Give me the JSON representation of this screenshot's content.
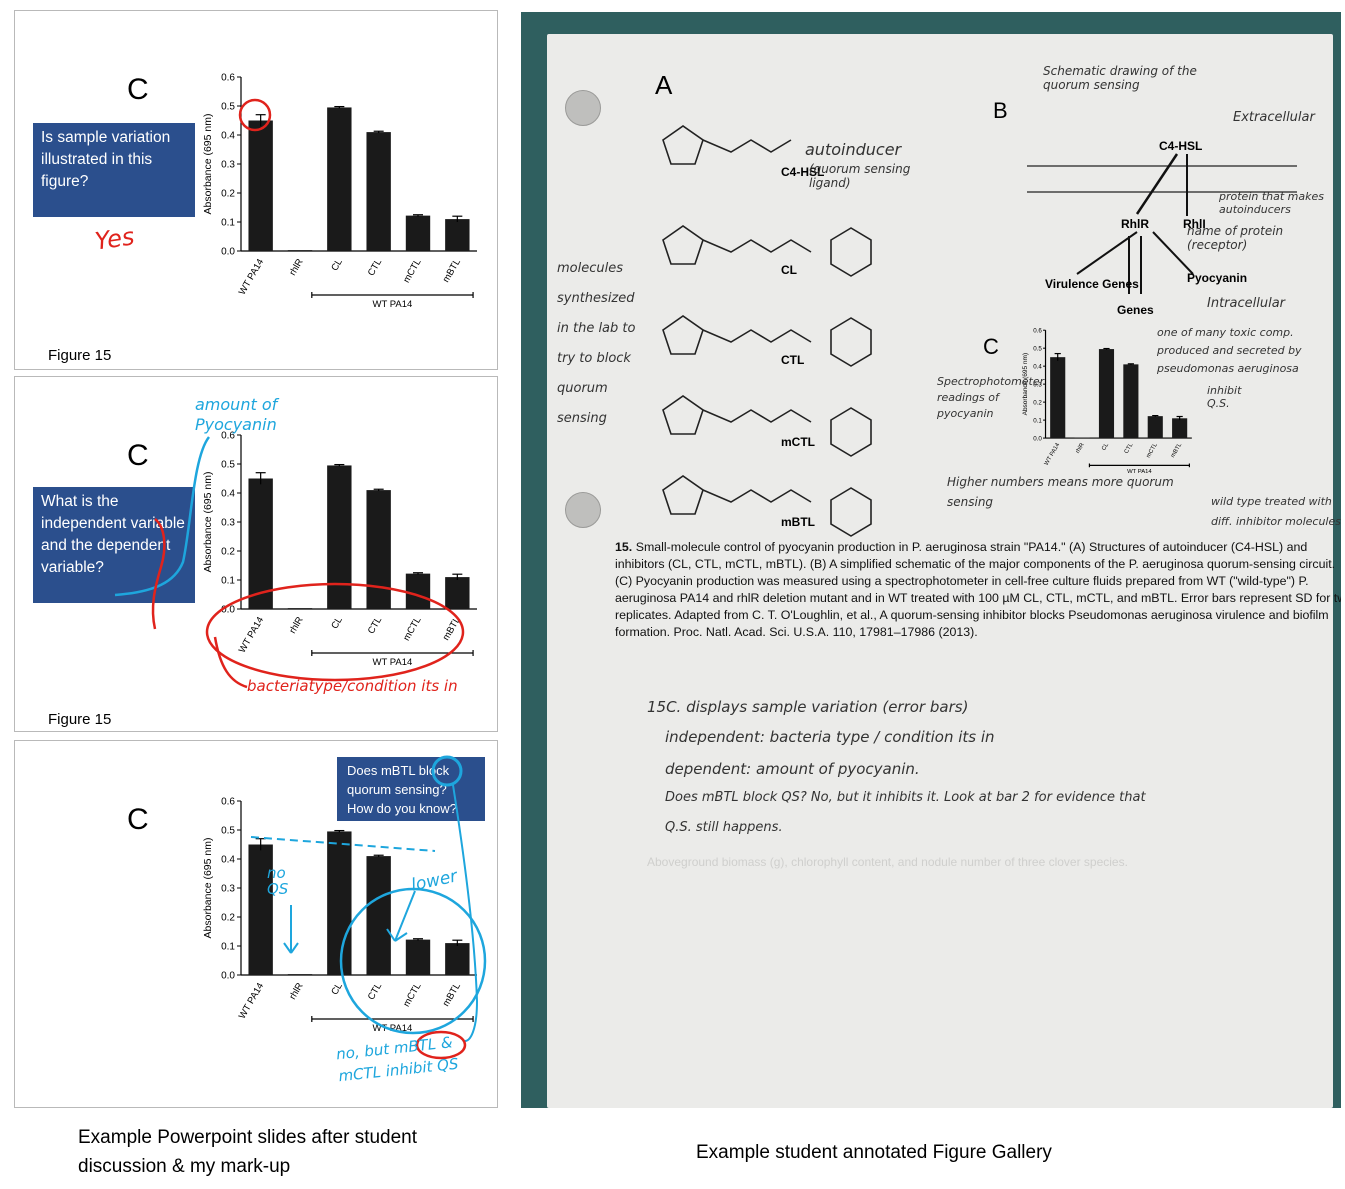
{
  "slides": [
    {
      "letter": "C",
      "question": "Is sample variation illustrated in this figure?",
      "figure_label": "Figure 15",
      "annotations": [
        "Yes"
      ]
    },
    {
      "letter": "C",
      "question": "What is the independent variable and the dependent variable?",
      "figure_label": "Figure 15",
      "annotations": [
        "amount of Pyocyanin",
        "bacteriatype/condition its in"
      ]
    },
    {
      "letter": "C",
      "question": "Does mBTL block quorum sensing? How do you know?",
      "figure_label": "",
      "annotations": [
        "no QS",
        "lower",
        "no, but mBTL & mCTL inhibit QS"
      ]
    }
  ],
  "chart_data": {
    "type": "bar",
    "categories": [
      "WT PA14",
      "rhlR",
      "CL",
      "CTL",
      "mCTL",
      "mBTL"
    ],
    "values": [
      0.45,
      0.003,
      0.495,
      0.41,
      0.122,
      0.11
    ],
    "errors": [
      0.02,
      0.0,
      0.003,
      0.003,
      0.003,
      0.01
    ],
    "ylabel": "Absorbance (695 nm)",
    "xlabel": "",
    "group_label": "WT PA14",
    "ylim": [
      0.0,
      0.6
    ],
    "yticks": [
      "0.0",
      "0.1",
      "0.2",
      "0.3",
      "0.4",
      "0.5",
      "0.6"
    ],
    "bar_color": "#1a1a1a"
  },
  "gallery": {
    "panel_a": "A",
    "panel_b": "B",
    "panel_c": "C",
    "molecules": [
      "C4-HSL",
      "CL",
      "CTL",
      "mCTL",
      "mBTL"
    ],
    "schematic": {
      "ligand": "C4-HSL",
      "receptor": "RhlR",
      "synthase": "RhlI",
      "virulence": "Virulence Genes",
      "genes": "Genes",
      "pyocyanin": "Pyocyanin"
    },
    "caption_number": "15.",
    "caption": "Small-molecule control of pyocyanin production in P. aeruginosa strain \"PA14.\" (A) Structures of autoinducer (C4-HSL) and inhibitors (CL, CTL, mCTL, mBTL). (B) A simplified schematic of the major components of the P. aeruginosa quorum-sensing circuit. (C) Pyocyanin production was measured using a spectrophotometer in cell-free culture fluids prepared from WT (\"wild-type\") P. aeruginosa PA14 and rhlR deletion mutant and in WT treated with 100 µM CL, CTL, mCTL, and mBTL. Error bars represent SD for two replicates. Adapted from C. T. O'Loughlin, et al., A quorum-sensing inhibitor blocks Pseudomonas aeruginosa virulence and biofilm formation. Proc. Natl. Acad. Sci. U.S.A. 110, 17981–17986 (2013).",
    "handwriting": {
      "autoinducer": "autoinducer",
      "quorum_ligand": "(quorum sensing ligand)",
      "molecules_note": "molecules synthesized in the lab to try to block quorum sensing",
      "schematic_note": "Schematic drawing of the quorum sensing",
      "extracellular": "Extracellular",
      "intracellular": "Intracellular",
      "name_of_protein": "name of protein (receptor)",
      "protein_autoinducer": "protein that makes autoinducers",
      "toxic_note": "one of many toxic comp. produced and secreted by pseudomonas aeruginosa",
      "spectro_note": "Spectrophotometer readings of pyocyanin",
      "higher_note": "Higher numbers means more quorum sensing",
      "inhibit_note": "inhibit Q.S.",
      "wild_type_note": "wild type treated with diff. inhibitor molecules",
      "line1": "15C. displays sample variation (error bars)",
      "line2": "independent: bacteria type / condition its in",
      "line3": "dependent: amount of pyocyanin.",
      "line4": "Does mBTL block QS? No, but it inhibits it. Look at bar 2 for evidence that",
      "line5": "Q.S. still happens."
    }
  },
  "captions": {
    "left": "Example Powerpoint slides after student discussion & my mark-up",
    "right": "Example student annotated Figure Gallery"
  }
}
